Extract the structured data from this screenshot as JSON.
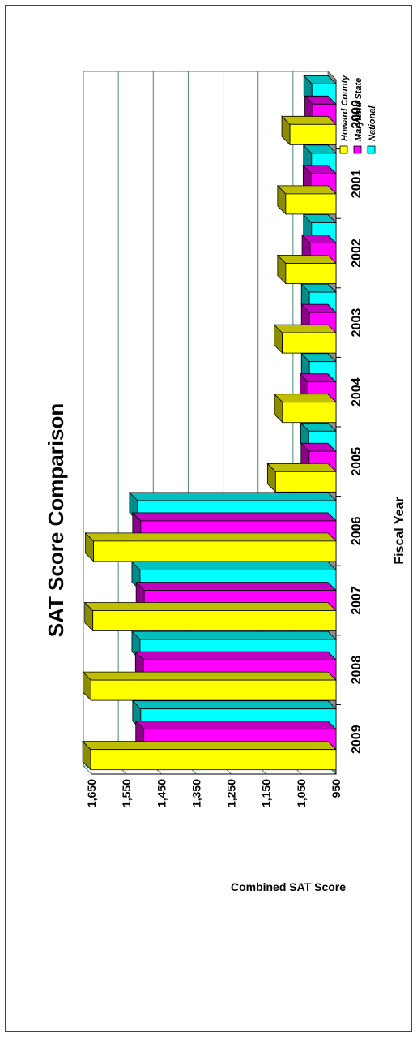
{
  "chart_data": {
    "type": "bar",
    "title": "SAT Score Comparison",
    "xlabel": "Fiscal Year",
    "ylabel": "Combined SAT Score",
    "categories": [
      "2009",
      "2008",
      "2007",
      "2006",
      "2005",
      "2004",
      "2003",
      "2002",
      "2001",
      "2000"
    ],
    "series": [
      {
        "name": "Howard County",
        "color": "#ffff00",
        "values": [
          1652,
          1651,
          1646,
          1644,
          1123,
          1103,
          1104,
          1094,
          1094,
          1082
        ]
      },
      {
        "name": "Maryland State",
        "color": "#ff00ff",
        "values": [
          1500,
          1501,
          1499,
          1509,
          1027,
          1030,
          1026,
          1024,
          1021,
          1016
        ]
      },
      {
        "name": "National",
        "color": "#00ffff",
        "values": [
          1509,
          1511,
          1511,
          1518,
          1028,
          1026,
          1026,
          1020,
          1020,
          1019
        ]
      }
    ],
    "ylim": [
      950,
      1650
    ],
    "yticks": [
      "950",
      "1,050",
      "1,150",
      "1,250",
      "1,350",
      "1,450",
      "1,550",
      "1,650"
    ],
    "grid": true,
    "legend_position": "top-right",
    "orientation": "rotated-90"
  }
}
